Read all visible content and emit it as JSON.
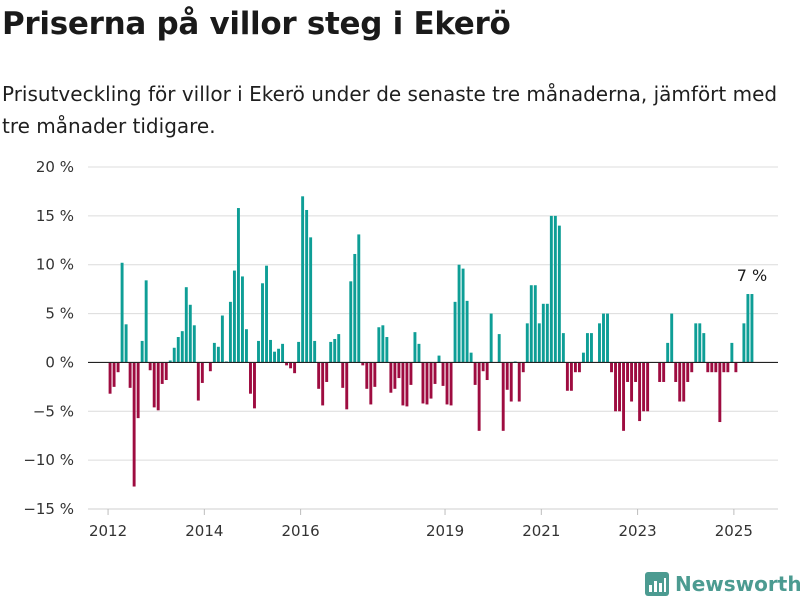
{
  "chart_data": {
    "type": "bar",
    "title": "Priserna på villor steg i Ekerö",
    "subtitle": "Prisutveckling för villor i Ekerö under de senaste tre månaderna, jämfört med tre månader tidigare.",
    "unit": "%",
    "ylim": [
      -15,
      20
    ],
    "yticks": [
      {
        "value": 20,
        "label": "20 %"
      },
      {
        "value": 15,
        "label": "15 %"
      },
      {
        "value": 10,
        "label": "10 %"
      },
      {
        "value": 5,
        "label": "5 %"
      },
      {
        "value": 0,
        "label": "0 %"
      },
      {
        "value": -5,
        "label": "−5 %"
      },
      {
        "value": -10,
        "label": "−10 %"
      },
      {
        "value": -15,
        "label": "−15 %"
      }
    ],
    "xlim": [
      "2011-08",
      "2025-12"
    ],
    "xticks": [
      {
        "date": "2012-01",
        "label": "2012"
      },
      {
        "date": "2014-01",
        "label": "2014"
      },
      {
        "date": "2016-01",
        "label": "2016"
      },
      {
        "date": "2019-01",
        "label": "2019"
      },
      {
        "date": "2021-01",
        "label": "2021"
      },
      {
        "date": "2023-01",
        "label": "2023"
      },
      {
        "date": "2025-01",
        "label": "2025"
      }
    ],
    "grid": true,
    "colors": {
      "positive": "#0e9e96",
      "negative": "#9e0c40"
    },
    "series": [
      {
        "start": "2012-01",
        "values": [
          -3.2,
          -2.5,
          -1,
          10.2,
          3.9,
          -2.6,
          -12.7,
          -5.7,
          2.2,
          8.4,
          -0.8,
          -4.6,
          -4.9,
          -2.2,
          -1.8,
          0.2,
          1.5,
          2.6,
          3.2,
          7.7,
          5.9,
          3.8,
          -3.9,
          -2.1,
          0,
          -0.9,
          2,
          1.6,
          4.8,
          0.1,
          6.2,
          9.4,
          15.8,
          8.8,
          3.4,
          -3.2,
          -4.7,
          2.2,
          8.1,
          9.9,
          2.3,
          1.1,
          1.4,
          1.9,
          -0.3,
          -0.6,
          -1.1,
          2.1,
          17,
          15.6,
          12.8,
          2.2,
          -2.7,
          -4.4,
          -2,
          2.1,
          2.4,
          2.9,
          -2.6,
          -4.8,
          8.3,
          11.1,
          13.1,
          -0.3,
          -2.7,
          -4.3,
          -2.5,
          3.6,
          3.8,
          2.6,
          -3.1,
          -2.7,
          -1.6,
          -4.4,
          -4.5,
          -2.3,
          3.1,
          1.9,
          -4.2,
          -4.3,
          -3.7,
          -2.2,
          0.7,
          -2.4,
          -4.3,
          -4.4,
          6.2,
          10,
          9.6,
          6.3,
          1,
          -2.3,
          -7,
          -0.9,
          -1.8,
          5,
          0,
          2.9,
          -7,
          -2.8,
          -4,
          0.1,
          -4,
          -1,
          4,
          7.9,
          7.9,
          4,
          6,
          6,
          15,
          15,
          14,
          3,
          -2.9,
          -2.9,
          -1,
          -1,
          1,
          3,
          3,
          0,
          4,
          5,
          5,
          -1,
          -5,
          -5,
          -7,
          -2,
          -4,
          -2,
          -6,
          -5,
          -5,
          0,
          0,
          -2,
          -2,
          2,
          5,
          -2,
          -4,
          -4,
          -2,
          -1,
          4,
          4,
          3,
          -1,
          -1,
          -1,
          -6.1,
          -1,
          -1,
          2,
          -1,
          0,
          4,
          7,
          7
        ]
      }
    ],
    "annotations": [
      {
        "date": "2025-05",
        "value": 7,
        "label": "7 %"
      }
    ]
  },
  "branding": {
    "name": "Newsworthy",
    "icon": "newsworthy-logo-icon",
    "color": "#4c9b91"
  }
}
